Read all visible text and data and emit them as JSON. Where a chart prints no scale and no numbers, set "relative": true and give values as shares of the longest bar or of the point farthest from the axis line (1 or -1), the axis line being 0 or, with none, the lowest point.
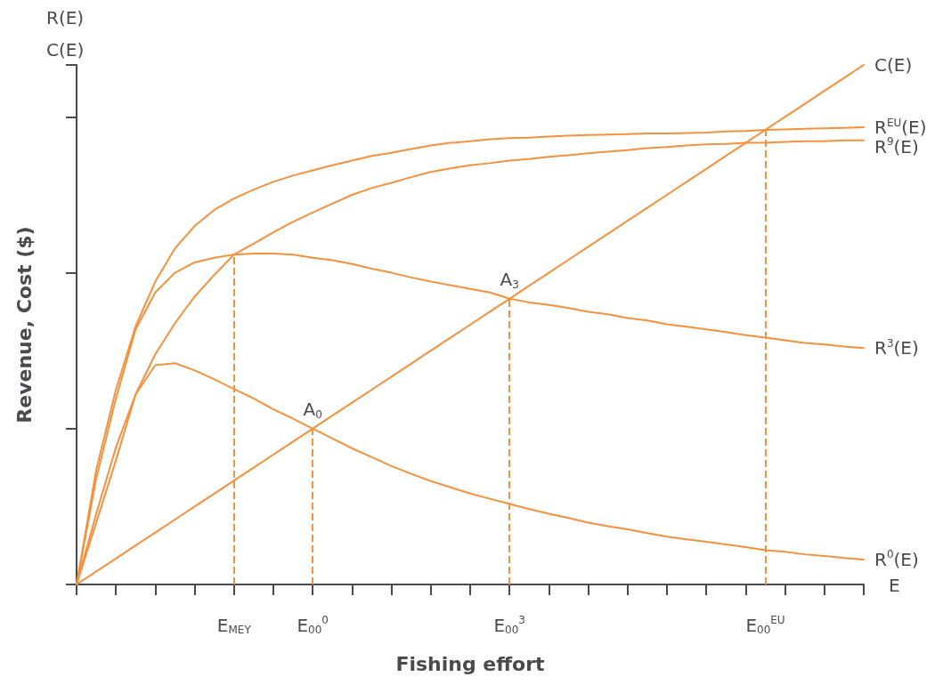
{
  "chart_data": {
    "type": "line",
    "relative": true,
    "xlabel": "Fishing effort",
    "ylabel": "Revenue, Cost ($)",
    "categories": [
      null,
      null,
      null,
      null,
      null,
      null,
      null,
      null,
      "E$_{MEY}$",
      null,
      null,
      null,
      "E$_{00}$$^{0}$",
      null,
      null,
      null,
      null,
      null,
      null,
      null,
      null,
      null,
      "E$_{00}$$^{3}$",
      null,
      null,
      null,
      null,
      null,
      null,
      null,
      null,
      null,
      null,
      null,
      null,
      "E$_{00}$$^{EU}$",
      null,
      null,
      null,
      null,
      null
    ],
    "series": [
      {
        "name": "C(E)",
        "color": "#f4913f",
        "values": [
          0,
          0.025,
          0.05,
          0.075,
          0.1,
          0.125,
          0.15,
          0.175,
          0.2,
          0.225,
          0.25,
          0.275,
          0.3,
          0.325,
          0.35,
          0.375,
          0.4,
          0.425,
          0.45,
          0.475,
          0.5,
          0.525,
          0.55,
          0.575,
          0.6,
          0.625,
          0.65,
          0.675,
          0.7,
          0.725,
          0.75,
          0.775,
          0.8,
          0.825,
          0.85,
          0.875,
          0.9,
          0.925,
          0.95,
          0.975,
          1
        ]
      },
      {
        "name": "R$^{EU}$(E)",
        "color": "#f4913f",
        "values": [
          0,
          0.221,
          0.375,
          0.497,
          0.583,
          0.647,
          0.69,
          0.721,
          0.743,
          0.76,
          0.775,
          0.787,
          0.797,
          0.807,
          0.816,
          0.825,
          0.831,
          0.838,
          0.845,
          0.85,
          0.853,
          0.857,
          0.859,
          0.86,
          0.862,
          0.864,
          0.865,
          0.866,
          0.867,
          0.868,
          0.868,
          0.869,
          0.87,
          0.872,
          0.873,
          0.875,
          0.876,
          0.877,
          0.878,
          0.879,
          0.88
        ]
      },
      {
        "name": "R$^{9}$(E)",
        "color": "#f4913f",
        "values": [
          0,
          0.119,
          0.239,
          0.366,
          0.443,
          0.503,
          0.554,
          0.596,
          0.635,
          0.656,
          0.678,
          0.698,
          0.716,
          0.733,
          0.75,
          0.763,
          0.773,
          0.784,
          0.794,
          0.801,
          0.807,
          0.811,
          0.816,
          0.819,
          0.823,
          0.826,
          0.83,
          0.833,
          0.836,
          0.84,
          0.842,
          0.845,
          0.847,
          0.848,
          0.85,
          0.85,
          0.852,
          0.853,
          0.853,
          0.855,
          0.855
        ]
      },
      {
        "name": "R$^{3}$(E)",
        "color": "#f4913f",
        "values": [
          0,
          0.204,
          0.358,
          0.491,
          0.562,
          0.6,
          0.62,
          0.629,
          0.635,
          0.637,
          0.637,
          0.635,
          0.629,
          0.624,
          0.617,
          0.608,
          0.6,
          0.591,
          0.583,
          0.576,
          0.569,
          0.562,
          0.55,
          0.543,
          0.538,
          0.532,
          0.525,
          0.52,
          0.513,
          0.508,
          0.501,
          0.496,
          0.491,
          0.486,
          0.48,
          0.475,
          0.47,
          0.465,
          0.462,
          0.458,
          0.455
        ]
      },
      {
        "name": "R$^{0}$(E)",
        "color": "#f4913f",
        "values": [
          0,
          0.136,
          0.264,
          0.366,
          0.422,
          0.426,
          0.412,
          0.395,
          0.376,
          0.358,
          0.337,
          0.319,
          0.3,
          0.281,
          0.262,
          0.245,
          0.228,
          0.213,
          0.199,
          0.187,
          0.175,
          0.165,
          0.155,
          0.145,
          0.136,
          0.128,
          0.119,
          0.112,
          0.106,
          0.099,
          0.092,
          0.087,
          0.082,
          0.077,
          0.072,
          0.066,
          0.063,
          0.058,
          0.055,
          0.051,
          0.048
        ]
      }
    ],
    "ref_lines": [
      {
        "axis": "x",
        "value": "E$_{MEY}$",
        "color": "#f4913f",
        "line_style": "dashed"
      },
      {
        "axis": "x",
        "value": "E$_{00}$$^{0}$",
        "color": "#f4913f",
        "line_style": "dashed"
      },
      {
        "axis": "x",
        "value": "E$_{00}$$^{3}$",
        "color": "#f4913f",
        "line_style": "dashed"
      },
      {
        "axis": "x",
        "value": "E$_{00}$$^{EU}$",
        "color": "#f4913f",
        "line_style": "dashed"
      }
    ],
    "annotations": [
      "R(E)",
      "C(E)",
      "E",
      {
        "text": "A$_{0}$",
        "x": "E$_{00}$$^{0}$",
        "y": 0.3
      },
      {
        "text": "A$_{3}$",
        "x": "E$_{00}$$^{3}$",
        "y": 0.55
      }
    ],
    "tick_labels": "x",
    "grid": false,
    "legend": false,
    "marker": "none",
    "line_style": "solid"
  }
}
